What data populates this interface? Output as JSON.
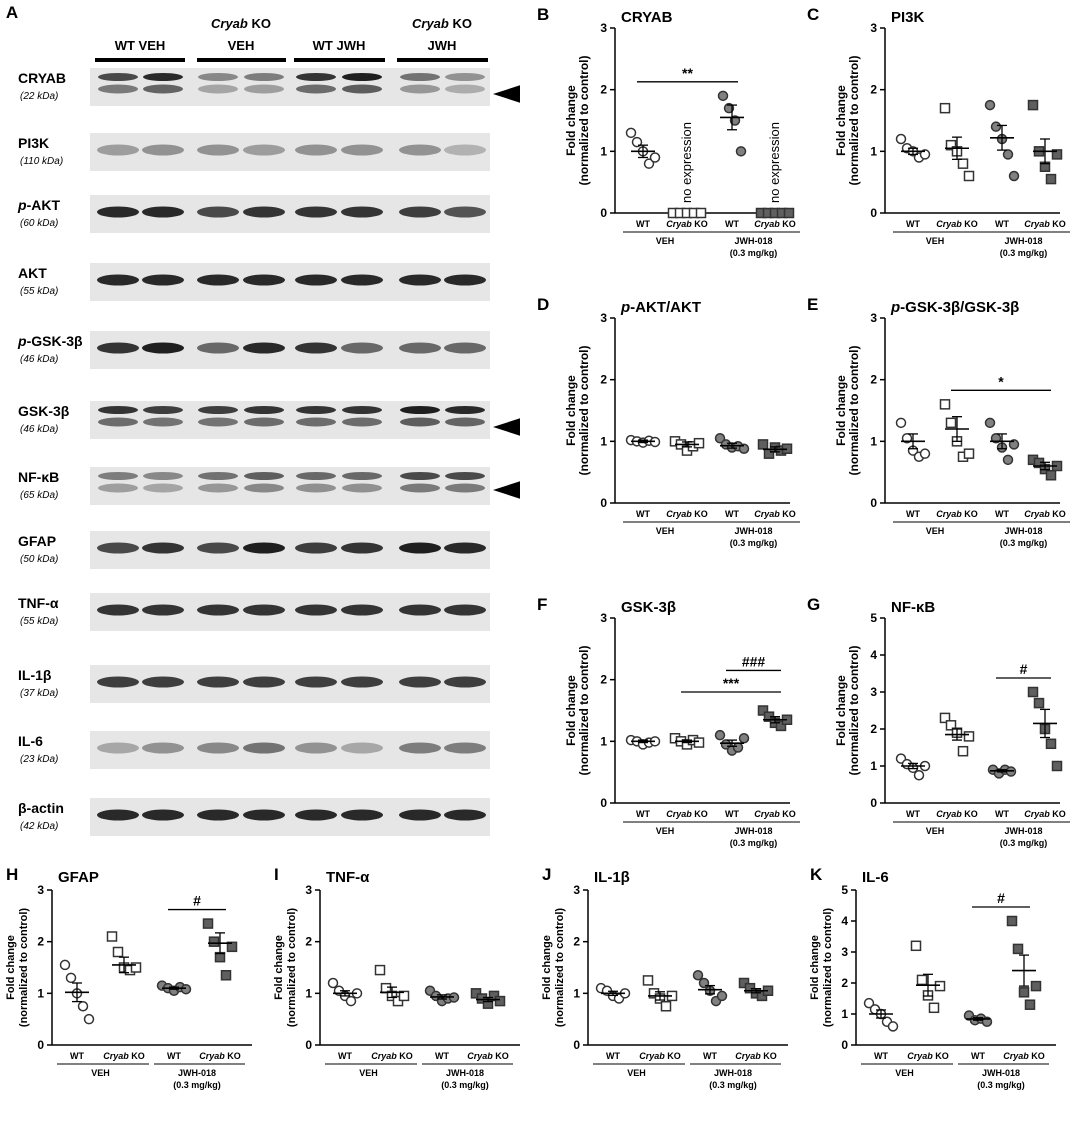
{
  "blot": {
    "panel_letter": "A",
    "groups": [
      {
        "label_html": "WT VEH"
      },
      {
        "label_line1": "Cryab KO",
        "label_line2": "VEH",
        "italic_first": true
      },
      {
        "label_html": "WT JWH"
      },
      {
        "label_line1": "Cryab KO",
        "label_line2": "JWH",
        "italic_first": true
      }
    ],
    "rows": [
      {
        "name": "CRYAB",
        "kda": "(22 kDa)",
        "arrow": true
      },
      {
        "name": "PI3K",
        "kda": "(110 kDa)"
      },
      {
        "name": "p-AKT",
        "kda": "(60 kDa)",
        "italic_prefix": "p"
      },
      {
        "name": "AKT",
        "kda": "(55 kDa)"
      },
      {
        "name": "p-GSK-3β",
        "kda": "(46 kDa)",
        "italic_prefix": "p"
      },
      {
        "name": "GSK-3β",
        "kda": "(46 kDa)",
        "arrow": true
      },
      {
        "name": "NF-κB",
        "kda": "(65 kDa)",
        "arrow": true
      },
      {
        "name": "GFAP",
        "kda": "(50 kDa)"
      },
      {
        "name": "TNF-α",
        "kda": "(55 kDa)"
      },
      {
        "name": "IL-1β",
        "kda": "(37 kDa)"
      },
      {
        "name": "IL-6",
        "kda": "(23 kDa)"
      },
      {
        "name": "β-actin",
        "kda": "(42 kDa)"
      }
    ]
  },
  "axis_common": {
    "ylabel_line1": "Fold change",
    "ylabel_line2": "(normalized to control)",
    "group_wt": "WT",
    "group_ko": "Cryab",
    "group_ko_suffix": " KO",
    "veh_label": "VEH",
    "jwh_label": "JWH-018",
    "jwh_dose": "(0.3 mg/kg)"
  },
  "chart_data": [
    {
      "panel": "B",
      "title": "CRYAB",
      "type": "scatter",
      "ylim": [
        0,
        3
      ],
      "yticks": [
        0,
        1,
        2,
        3
      ],
      "series": [
        {
          "name": "WT VEH",
          "values": [
            1.3,
            1.15,
            1.0,
            0.8,
            0.9
          ],
          "mean": 1.0,
          "sem": 0.1
        },
        {
          "name": "Cryab KO VEH",
          "values": [
            0,
            0,
            0,
            0,
            0
          ],
          "mean": 0,
          "sem": 0,
          "annotation": "no expression"
        },
        {
          "name": "WT JWH-018",
          "values": [
            1.9,
            1.7,
            1.5,
            1.0
          ],
          "mean": 1.55,
          "sem": 0.2
        },
        {
          "name": "Cryab KO JWH-018",
          "values": [
            0,
            0,
            0,
            0,
            0
          ],
          "mean": 0,
          "sem": 0,
          "annotation": "no expression"
        }
      ],
      "significance": [
        {
          "from": 0,
          "to": 2,
          "label": "**"
        }
      ]
    },
    {
      "panel": "C",
      "title": "PI3K",
      "type": "scatter",
      "ylim": [
        0,
        3
      ],
      "yticks": [
        0,
        1,
        2,
        3
      ],
      "series": [
        {
          "name": "WT VEH",
          "values": [
            1.2,
            1.05,
            1.0,
            0.9,
            0.95
          ],
          "mean": 1.0,
          "sem": 0.05
        },
        {
          "name": "Cryab KO VEH",
          "values": [
            1.7,
            1.1,
            1.0,
            0.8,
            0.6
          ],
          "mean": 1.05,
          "sem": 0.18
        },
        {
          "name": "WT JWH-018",
          "values": [
            1.75,
            1.4,
            1.2,
            0.95,
            0.6
          ],
          "mean": 1.22,
          "sem": 0.2
        },
        {
          "name": "Cryab KO JWH-018",
          "values": [
            1.75,
            1.0,
            0.75,
            0.55,
            0.95
          ],
          "mean": 1.0,
          "sem": 0.2
        }
      ],
      "significance": []
    },
    {
      "panel": "D",
      "title": "p-AKT/AKT",
      "type": "scatter",
      "ylim": [
        0,
        3
      ],
      "yticks": [
        0,
        1,
        2,
        3
      ],
      "series": [
        {
          "name": "WT VEH",
          "values": [
            1.02,
            1.0,
            0.98,
            1.01,
            0.99
          ],
          "mean": 1.0,
          "sem": 0.02
        },
        {
          "name": "Cryab KO VEH",
          "values": [
            1.0,
            0.95,
            0.85,
            0.92,
            0.97
          ],
          "mean": 0.95,
          "sem": 0.04
        },
        {
          "name": "WT JWH-018",
          "values": [
            1.05,
            0.95,
            0.9,
            0.92,
            0.88
          ],
          "mean": 0.93,
          "sem": 0.04
        },
        {
          "name": "Cryab KO JWH-018",
          "values": [
            0.95,
            0.8,
            0.9,
            0.85,
            0.88
          ],
          "mean": 0.87,
          "sem": 0.04
        }
      ],
      "significance": []
    },
    {
      "panel": "E",
      "title": "p-GSK-3β/GSK-3β",
      "type": "scatter",
      "ylim": [
        0,
        3
      ],
      "yticks": [
        0,
        1,
        2,
        3
      ],
      "series": [
        {
          "name": "WT VEH",
          "values": [
            1.3,
            1.05,
            0.85,
            0.75,
            0.8
          ],
          "mean": 1.0,
          "sem": 0.12
        },
        {
          "name": "Cryab KO VEH",
          "values": [
            1.6,
            1.3,
            1.0,
            0.75,
            0.8
          ],
          "mean": 1.2,
          "sem": 0.2
        },
        {
          "name": "WT JWH-018",
          "values": [
            1.3,
            1.05,
            0.9,
            0.7,
            0.95
          ],
          "mean": 1.0,
          "sem": 0.12
        },
        {
          "name": "Cryab KO JWH-018",
          "values": [
            0.7,
            0.65,
            0.55,
            0.45,
            0.6
          ],
          "mean": 0.6,
          "sem": 0.06
        }
      ],
      "significance": [
        {
          "from": 1,
          "to": 3,
          "label": "*"
        }
      ]
    },
    {
      "panel": "F",
      "title": "GSK-3β",
      "type": "scatter",
      "ylim": [
        0,
        3
      ],
      "yticks": [
        0,
        1,
        2,
        3
      ],
      "series": [
        {
          "name": "WT VEH",
          "values": [
            1.02,
            1.0,
            0.95,
            0.98,
            1.0
          ],
          "mean": 1.0,
          "sem": 0.02
        },
        {
          "name": "Cryab KO VEH",
          "values": [
            1.05,
            1.0,
            0.95,
            1.02,
            0.98
          ],
          "mean": 1.0,
          "sem": 0.02
        },
        {
          "name": "WT JWH-018",
          "values": [
            1.1,
            0.95,
            0.85,
            0.9,
            1.05
          ],
          "mean": 0.97,
          "sem": 0.05
        },
        {
          "name": "Cryab KO JWH-018",
          "values": [
            1.5,
            1.4,
            1.3,
            1.25,
            1.35
          ],
          "mean": 1.35,
          "sem": 0.05
        }
      ],
      "significance": [
        {
          "from": 2,
          "to": 3,
          "label": "###"
        },
        {
          "from": 1,
          "to": 3,
          "label": "***"
        }
      ]
    },
    {
      "panel": "G",
      "title": "NF-κB",
      "type": "scatter",
      "ylim": [
        0,
        5
      ],
      "yticks": [
        0,
        1,
        2,
        3,
        4,
        5
      ],
      "series": [
        {
          "name": "WT VEH",
          "values": [
            1.2,
            1.05,
            0.95,
            0.75,
            1.0
          ],
          "mean": 1.0,
          "sem": 0.07
        },
        {
          "name": "Cryab KO VEH",
          "values": [
            2.3,
            2.1,
            1.9,
            1.4,
            1.8
          ],
          "mean": 1.85,
          "sem": 0.15
        },
        {
          "name": "WT JWH-018",
          "values": [
            0.9,
            0.8,
            0.9,
            0.85
          ],
          "mean": 0.87,
          "sem": 0.03
        },
        {
          "name": "Cryab KO JWH-018",
          "values": [
            3.0,
            2.7,
            2.0,
            1.6,
            1.0
          ],
          "mean": 2.15,
          "sem": 0.38
        }
      ],
      "significance": [
        {
          "from": 2,
          "to": 3,
          "label": "#"
        }
      ]
    },
    {
      "panel": "H",
      "title": "GFAP",
      "type": "scatter",
      "ylim": [
        0,
        3
      ],
      "yticks": [
        0,
        1,
        2,
        3
      ],
      "series": [
        {
          "name": "WT VEH",
          "values": [
            1.55,
            1.3,
            1.0,
            0.75,
            0.5
          ],
          "mean": 1.02,
          "sem": 0.18
        },
        {
          "name": "Cryab KO VEH",
          "values": [
            2.1,
            1.8,
            1.5,
            1.45,
            1.5
          ],
          "mean": 1.55,
          "sem": 0.15
        },
        {
          "name": "WT JWH-018",
          "values": [
            1.15,
            1.1,
            1.05,
            1.12,
            1.08
          ],
          "mean": 1.1,
          "sem": 0.02
        },
        {
          "name": "Cryab KO JWH-018",
          "values": [
            2.35,
            2.0,
            1.7,
            1.35,
            1.9
          ],
          "mean": 1.97,
          "sem": 0.2
        }
      ],
      "significance": [
        {
          "from": 2,
          "to": 3,
          "label": "#"
        }
      ]
    },
    {
      "panel": "I",
      "title": "TNF-α",
      "type": "scatter",
      "ylim": [
        0,
        3
      ],
      "yticks": [
        0,
        1,
        2,
        3
      ],
      "series": [
        {
          "name": "WT VEH",
          "values": [
            1.2,
            1.05,
            0.95,
            0.85,
            1.0
          ],
          "mean": 1.0,
          "sem": 0.05
        },
        {
          "name": "Cryab KO VEH",
          "values": [
            1.45,
            1.1,
            0.95,
            0.85,
            0.95
          ],
          "mean": 1.02,
          "sem": 0.1
        },
        {
          "name": "WT JWH-018",
          "values": [
            1.05,
            0.95,
            0.85,
            0.9,
            0.92
          ],
          "mean": 0.93,
          "sem": 0.04
        },
        {
          "name": "Cryab KO JWH-018",
          "values": [
            1.0,
            0.9,
            0.8,
            0.95,
            0.85
          ],
          "mean": 0.88,
          "sem": 0.04
        }
      ],
      "significance": []
    },
    {
      "panel": "J",
      "title": "IL-1β",
      "type": "scatter",
      "ylim": [
        0,
        3
      ],
      "yticks": [
        0,
        1,
        2,
        3
      ],
      "series": [
        {
          "name": "WT VEH",
          "values": [
            1.1,
            1.05,
            0.95,
            0.9,
            1.0
          ],
          "mean": 1.0,
          "sem": 0.04
        },
        {
          "name": "Cryab KO VEH",
          "values": [
            1.25,
            1.0,
            0.9,
            0.75,
            0.95
          ],
          "mean": 0.95,
          "sem": 0.08
        },
        {
          "name": "WT JWH-018",
          "values": [
            1.35,
            1.2,
            1.05,
            0.85,
            0.95
          ],
          "mean": 1.07,
          "sem": 0.08
        },
        {
          "name": "Cryab KO JWH-018",
          "values": [
            1.2,
            1.1,
            1.0,
            0.95,
            1.05
          ],
          "mean": 1.05,
          "sem": 0.04
        }
      ],
      "significance": []
    },
    {
      "panel": "K",
      "title": "IL-6",
      "type": "scatter",
      "ylim": [
        0,
        5
      ],
      "yticks": [
        0,
        1,
        2,
        3,
        4,
        5
      ],
      "series": [
        {
          "name": "WT VEH",
          "values": [
            1.35,
            1.15,
            1.0,
            0.75,
            0.6
          ],
          "mean": 1.0,
          "sem": 0.13
        },
        {
          "name": "Cryab KO VEH",
          "values": [
            3.2,
            2.1,
            1.6,
            1.2,
            1.9
          ],
          "mean": 1.93,
          "sem": 0.35
        },
        {
          "name": "WT JWH-018",
          "values": [
            0.95,
            0.8,
            0.85,
            0.75
          ],
          "mean": 0.84,
          "sem": 0.04
        },
        {
          "name": "Cryab KO JWH-018",
          "values": [
            4.0,
            3.1,
            1.7,
            1.3,
            1.9
          ],
          "mean": 2.4,
          "sem": 0.5
        }
      ],
      "significance": [
        {
          "from": 2,
          "to": 3,
          "label": "#"
        }
      ]
    }
  ]
}
